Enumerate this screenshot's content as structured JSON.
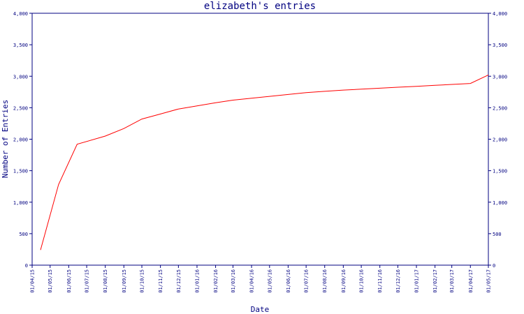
{
  "chart_data": {
    "type": "line",
    "title": "elizabeth's entries",
    "xlabel": "Date",
    "ylabel": "Number of Entries",
    "ylim": [
      0,
      4000
    ],
    "y_ticks": [
      0,
      500,
      1000,
      1500,
      2000,
      2500,
      3000,
      3500,
      4000
    ],
    "y_tick_labels": [
      "0",
      "500",
      "1,000",
      "1,500",
      "2,000",
      "2,500",
      "3,000",
      "3,500",
      "4,000"
    ],
    "x_ticks": [
      "2015-04-01",
      "2015-05-01",
      "2015-06-01",
      "2015-07-01",
      "2015-08-01",
      "2015-09-01",
      "2015-10-01",
      "2015-11-01",
      "2015-12-01",
      "2016-01-01",
      "2016-02-01",
      "2016-03-01",
      "2016-04-01",
      "2016-05-01",
      "2016-06-01",
      "2016-07-01",
      "2016-08-01",
      "2016-09-01",
      "2016-10-01",
      "2016-11-01",
      "2016-12-01",
      "2017-01-01",
      "2017-02-01",
      "2017-03-01",
      "2017-04-01",
      "2017-05-01"
    ],
    "x_tick_labels": [
      "01/04/15",
      "01/05/15",
      "01/06/15",
      "01/07/15",
      "01/08/15",
      "01/09/15",
      "01/10/15",
      "01/11/15",
      "01/12/15",
      "01/01/16",
      "01/02/16",
      "01/03/16",
      "01/04/16",
      "01/05/16",
      "01/06/16",
      "01/07/16",
      "01/08/16",
      "01/09/16",
      "01/10/16",
      "01/11/16",
      "01/12/16",
      "01/01/17",
      "01/02/17",
      "01/03/17",
      "01/04/17",
      "01/05/17"
    ],
    "xlim": [
      "2015-04-01",
      "2017-05-01"
    ],
    "grid": false,
    "series": [
      {
        "color": "#ff0000",
        "points": [
          {
            "x": "2015-04-15",
            "y": 240
          },
          {
            "x": "2015-05-15",
            "y": 1280
          },
          {
            "x": "2015-06-15",
            "y": 1920
          },
          {
            "x": "2015-08-01",
            "y": 2050
          },
          {
            "x": "2015-09-01",
            "y": 2170
          },
          {
            "x": "2015-10-01",
            "y": 2320
          },
          {
            "x": "2015-11-01",
            "y": 2400
          },
          {
            "x": "2015-12-01",
            "y": 2480
          },
          {
            "x": "2016-01-01",
            "y": 2530
          },
          {
            "x": "2016-02-01",
            "y": 2580
          },
          {
            "x": "2016-03-01",
            "y": 2620
          },
          {
            "x": "2016-04-01",
            "y": 2650
          },
          {
            "x": "2016-05-01",
            "y": 2680
          },
          {
            "x": "2016-06-01",
            "y": 2710
          },
          {
            "x": "2016-07-01",
            "y": 2740
          },
          {
            "x": "2016-08-01",
            "y": 2760
          },
          {
            "x": "2016-09-01",
            "y": 2780
          },
          {
            "x": "2016-10-01",
            "y": 2795
          },
          {
            "x": "2016-11-01",
            "y": 2810
          },
          {
            "x": "2016-12-01",
            "y": 2825
          },
          {
            "x": "2017-01-01",
            "y": 2840
          },
          {
            "x": "2017-02-01",
            "y": 2855
          },
          {
            "x": "2017-03-01",
            "y": 2870
          },
          {
            "x": "2017-04-01",
            "y": 2885
          },
          {
            "x": "2017-05-01",
            "y": 3020
          }
        ]
      }
    ]
  }
}
